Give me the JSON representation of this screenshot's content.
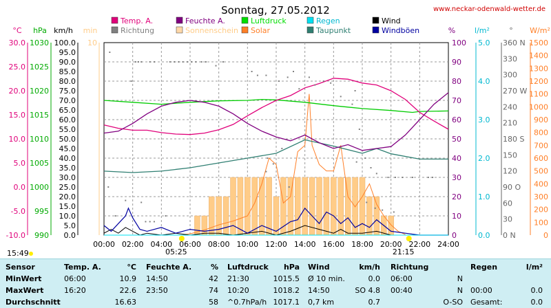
{
  "header": {
    "title": "Sonntag, 27.05.2012",
    "site": "www.neckar-odenwald-wetter.de"
  },
  "legend": [
    {
      "label": "Temp. A.",
      "color": "#e0007a"
    },
    {
      "label": "Feuchte A.",
      "color": "#800080"
    },
    {
      "label": "Luftdruck",
      "color": "#00dd00"
    },
    {
      "label": "Regen",
      "color": "#00e0f0"
    },
    {
      "label": "Wind",
      "color": "#000000"
    },
    {
      "label": "Richtung",
      "color": "#808080"
    },
    {
      "label": "Sonnenschein",
      "color": "#ffd8a8"
    },
    {
      "label": "Solar",
      "color": "#ff7f27"
    },
    {
      "label": "Taupunkt",
      "color": "#2f7f72"
    },
    {
      "label": "Windböen",
      "color": "#0000a0"
    }
  ],
  "axes": {
    "left_units": [
      "°C",
      "hPa",
      "km/h",
      "min"
    ],
    "right_units": [
      "%",
      "l/m²",
      "°",
      "W/m²"
    ],
    "temp_ticks": [
      "30.0",
      "25.0",
      "20.0",
      "15.0",
      "10.0",
      "5.0",
      "0.0",
      "-5.0",
      "-10.0"
    ],
    "hpa_ticks": [
      "1030",
      "1025",
      "1020",
      "1015",
      "1010",
      "1005",
      "1000",
      "995",
      "990"
    ],
    "kmh_ticks": [
      "100.0",
      "95.0",
      "90.0",
      "85.0",
      "80.0",
      "75.0",
      "70.0",
      "65.0",
      "60.0",
      "55.0",
      "50.0",
      "45.0",
      "40.0",
      "35.0",
      "30.0",
      "25.0",
      "20.0",
      "15.0",
      "10.0",
      "5.0",
      "0.0"
    ],
    "min_ticks": [
      "10",
      "",
      "",
      "",
      "",
      "",
      "",
      "",
      "",
      "",
      ""
    ],
    "pct_ticks": [
      "100",
      "90",
      "80",
      "70",
      "60",
      "50",
      "40",
      "30",
      "20",
      "10",
      "0"
    ],
    "rain_ticks": [
      "5.0",
      "4.0",
      "3.0",
      "2.0",
      "1.0",
      "0.0"
    ],
    "dir_ticks": [
      "360 N",
      "330",
      "300",
      "270 W",
      "240",
      "210",
      "180 S",
      "150",
      "120",
      "90 O",
      "60",
      "30",
      "0 N"
    ],
    "solar_ticks": [
      "1500",
      "1400",
      "1300",
      "1200",
      "1100",
      "1000",
      "900",
      "800",
      "700",
      "600",
      "500",
      "400",
      "300",
      "200",
      "100",
      "0"
    ],
    "x_ticks": [
      "00:00",
      "02:00",
      "04:00",
      "06:00",
      "08:00",
      "10:00",
      "12:00",
      "14:00",
      "16:00",
      "18:00",
      "20:00",
      "22:00",
      "24:00"
    ],
    "sunrise": "05:25",
    "sunset": "21:15",
    "daylength": "15:49"
  },
  "chart_data": {
    "type": "line",
    "title": "Sonntag, 27.05.2012",
    "x_unit": "hours",
    "xlim": [
      0,
      24
    ],
    "series": [
      {
        "name": "Temp. A.",
        "unit": "°C",
        "x": [
          0,
          1,
          2,
          3,
          4,
          5,
          6,
          7,
          8,
          9,
          10,
          11,
          12,
          13,
          14,
          15,
          16,
          17,
          18,
          19,
          20,
          21,
          22,
          23,
          24
        ],
        "values": [
          12.9,
          12.2,
          11.8,
          11.8,
          11.3,
          11.0,
          10.9,
          11.2,
          11.9,
          13.0,
          14.8,
          16.5,
          18.0,
          19.0,
          20.6,
          21.5,
          22.6,
          22.4,
          21.6,
          21.2,
          20.0,
          18.2,
          15.5,
          13.7,
          12.0
        ]
      },
      {
        "name": "Feuchte A.",
        "unit": "%",
        "x": [
          0,
          1,
          2,
          3,
          4,
          5,
          6,
          7,
          8,
          9,
          10,
          11,
          12,
          13,
          14,
          15,
          16,
          17,
          18,
          19,
          20,
          21,
          22,
          23,
          24
        ],
        "values": [
          53,
          54,
          58,
          63,
          67,
          69,
          70,
          69,
          67,
          63,
          58,
          54,
          51,
          49,
          52,
          48,
          45,
          47,
          44,
          45,
          46,
          52,
          60,
          68,
          74
        ]
      },
      {
        "name": "Luftdruck",
        "unit": "hPa",
        "x": [
          0,
          2,
          4,
          6,
          8,
          10,
          11,
          12,
          14,
          16,
          18,
          20,
          21.5,
          22,
          24
        ],
        "values": [
          1018.0,
          1017.6,
          1017.2,
          1017.6,
          1017.9,
          1018.0,
          1018.2,
          1018.1,
          1017.6,
          1016.9,
          1016.3,
          1015.9,
          1015.5,
          1015.7,
          1015.8
        ]
      },
      {
        "name": "Taupunkt",
        "unit": "°C",
        "x": [
          0,
          2,
          4,
          6,
          8,
          10,
          12,
          14,
          16,
          18,
          19,
          20,
          22,
          24
        ],
        "values": [
          3.3,
          3.0,
          3.3,
          4.0,
          5.0,
          6.0,
          7.0,
          9.8,
          8.5,
          7.0,
          8.0,
          6.9,
          5.8,
          5.8
        ]
      },
      {
        "name": "Solar",
        "unit": "W/m²",
        "x": [
          5.5,
          6,
          7,
          8,
          9,
          10,
          10.5,
          11,
          11.5,
          12,
          12.5,
          13,
          13.5,
          14,
          14.3,
          14.5,
          15,
          15.5,
          16,
          16.5,
          17,
          17.5,
          18,
          18.5,
          19,
          19.5,
          20,
          20.5,
          21
        ],
        "values": [
          5,
          10,
          40,
          80,
          110,
          150,
          250,
          400,
          600,
          550,
          250,
          300,
          650,
          700,
          1100,
          700,
          550,
          500,
          500,
          700,
          300,
          220,
          300,
          400,
          240,
          150,
          80,
          30,
          5
        ]
      },
      {
        "name": "Sonnenschein",
        "unit": "min",
        "x": [
          0,
          5.5,
          6,
          6.5,
          7,
          7.5,
          8,
          8.5,
          9,
          9.5,
          10,
          10.5,
          11,
          11.5,
          12,
          12.5,
          13,
          13.5,
          14,
          14.5,
          15,
          15.5,
          16,
          16.5,
          17,
          17.5,
          18,
          18.5,
          19,
          19.5,
          20,
          20.5,
          21
        ],
        "values": [
          0,
          0,
          0,
          1,
          1,
          2,
          2,
          2,
          3,
          3,
          3,
          3,
          3,
          3,
          2,
          3,
          3,
          3,
          3,
          3,
          3,
          3,
          3,
          3,
          3,
          3,
          3,
          2,
          2,
          1,
          1,
          0,
          0
        ]
      },
      {
        "name": "Wind",
        "unit": "km/h",
        "x": [
          0,
          0.5,
          1,
          1.5,
          2,
          2.5,
          3,
          4,
          5,
          6,
          7,
          8,
          9,
          10,
          11,
          12,
          13,
          14,
          14.5,
          15,
          15.5,
          16,
          16.5,
          17,
          18,
          19,
          20,
          21,
          22,
          23,
          24
        ],
        "values": [
          1,
          3,
          1,
          4,
          2,
          0,
          1,
          0,
          1,
          0,
          1,
          1,
          0,
          1,
          2,
          0,
          2,
          5,
          4,
          3,
          2,
          1,
          3,
          1,
          1,
          2,
          0,
          0,
          0,
          0,
          0
        ]
      },
      {
        "name": "Windböen",
        "unit": "km/h",
        "x": [
          0,
          0.5,
          1,
          1.5,
          1.7,
          2,
          2.5,
          3,
          4,
          5,
          6,
          7,
          8,
          9,
          10,
          11,
          12,
          13,
          13.5,
          14,
          14.5,
          15,
          15.5,
          16,
          16.5,
          17,
          17.5,
          18,
          18.5,
          19,
          20,
          21,
          22,
          23,
          24
        ],
        "values": [
          5,
          2,
          6,
          10,
          14,
          9,
          3,
          2,
          4,
          1,
          3,
          2,
          3,
          5,
          1,
          5,
          2,
          7,
          8,
          14,
          10,
          6,
          12,
          10,
          6,
          9,
          4,
          6,
          4,
          8,
          2,
          1,
          0,
          0,
          0
        ]
      },
      {
        "name": "Regen",
        "unit": "l/m²",
        "x": [
          0,
          24
        ],
        "values": [
          0,
          0
        ]
      }
    ],
    "richtung_points": [
      [
        0.4,
        95
      ],
      [
        1.9,
        80
      ],
      [
        2.2,
        90
      ],
      [
        2.4,
        90
      ],
      [
        2.6,
        90
      ],
      [
        3.2,
        90
      ],
      [
        3.5,
        90
      ],
      [
        4.6,
        90
      ],
      [
        4.9,
        90
      ],
      [
        5.2,
        90
      ],
      [
        5.5,
        90
      ],
      [
        5.8,
        90
      ],
      [
        6.1,
        90
      ],
      [
        6.4,
        90
      ],
      [
        6.8,
        90
      ],
      [
        7.1,
        90
      ],
      [
        7.8,
        88
      ],
      [
        8.3,
        90
      ],
      [
        10.3,
        85
      ],
      [
        10.7,
        83
      ],
      [
        11.3,
        83
      ],
      [
        12.2,
        80
      ],
      [
        12.8,
        82
      ],
      [
        13.2,
        85
      ],
      [
        13.6,
        76
      ],
      [
        14.3,
        82
      ],
      [
        14.7,
        78
      ],
      [
        15.3,
        80
      ],
      [
        15.8,
        79
      ],
      [
        16.5,
        72
      ],
      [
        17.3,
        68
      ],
      [
        17.5,
        75
      ],
      [
        17.8,
        55
      ],
      [
        18.2,
        40
      ],
      [
        18.6,
        35
      ],
      [
        19,
        32
      ],
      [
        19.8,
        30
      ],
      [
        20.3,
        30
      ],
      [
        20.8,
        30
      ],
      [
        21.5,
        30
      ],
      [
        22.6,
        30
      ],
      [
        22.9,
        30
      ],
      [
        0.3,
        25
      ],
      [
        0.8,
        10
      ],
      [
        1.5,
        18
      ],
      [
        2.6,
        17
      ],
      [
        2.9,
        7
      ],
      [
        3.2,
        7
      ],
      [
        3.5,
        7
      ],
      [
        4.3,
        10
      ],
      [
        12.4,
        45
      ],
      [
        11.4,
        40
      ],
      [
        11.8,
        37
      ],
      [
        12.9,
        25
      ],
      [
        17.6,
        38
      ],
      [
        18.3,
        17
      ],
      [
        18.9,
        14
      ],
      [
        19.4,
        13
      ],
      [
        20.2,
        12
      ],
      [
        11.3,
        33
      ]
    ]
  },
  "stats": {
    "headers": [
      "Sensor",
      "Temp. A.",
      "°C",
      "Feuchte A.",
      "%",
      "Luftdruck",
      "hPa",
      "Wind",
      "km/h",
      "Richtung",
      "Regen",
      "l/m²"
    ],
    "rows": [
      [
        "MinWert",
        "06:00",
        "10.9",
        "14:50",
        "42",
        "21:30",
        "1015.5",
        "Ø 10 min.",
        "0.0",
        "06:00",
        "N",
        "",
        ""
      ],
      [
        "MaxWert",
        "16:20",
        "22.6",
        "23:50",
        "74",
        "10:20",
        "1018.2",
        "14:50",
        "SO 4.8",
        "00:40",
        "N",
        "00:00",
        "0.0"
      ],
      [
        "Durchschnitt",
        "",
        "16.63",
        "",
        "58",
        "^0.7hPa/h",
        "1017.1",
        "0,7 km",
        "0.7",
        "",
        "O-SO",
        "Gesamt:",
        "0.0"
      ]
    ]
  }
}
